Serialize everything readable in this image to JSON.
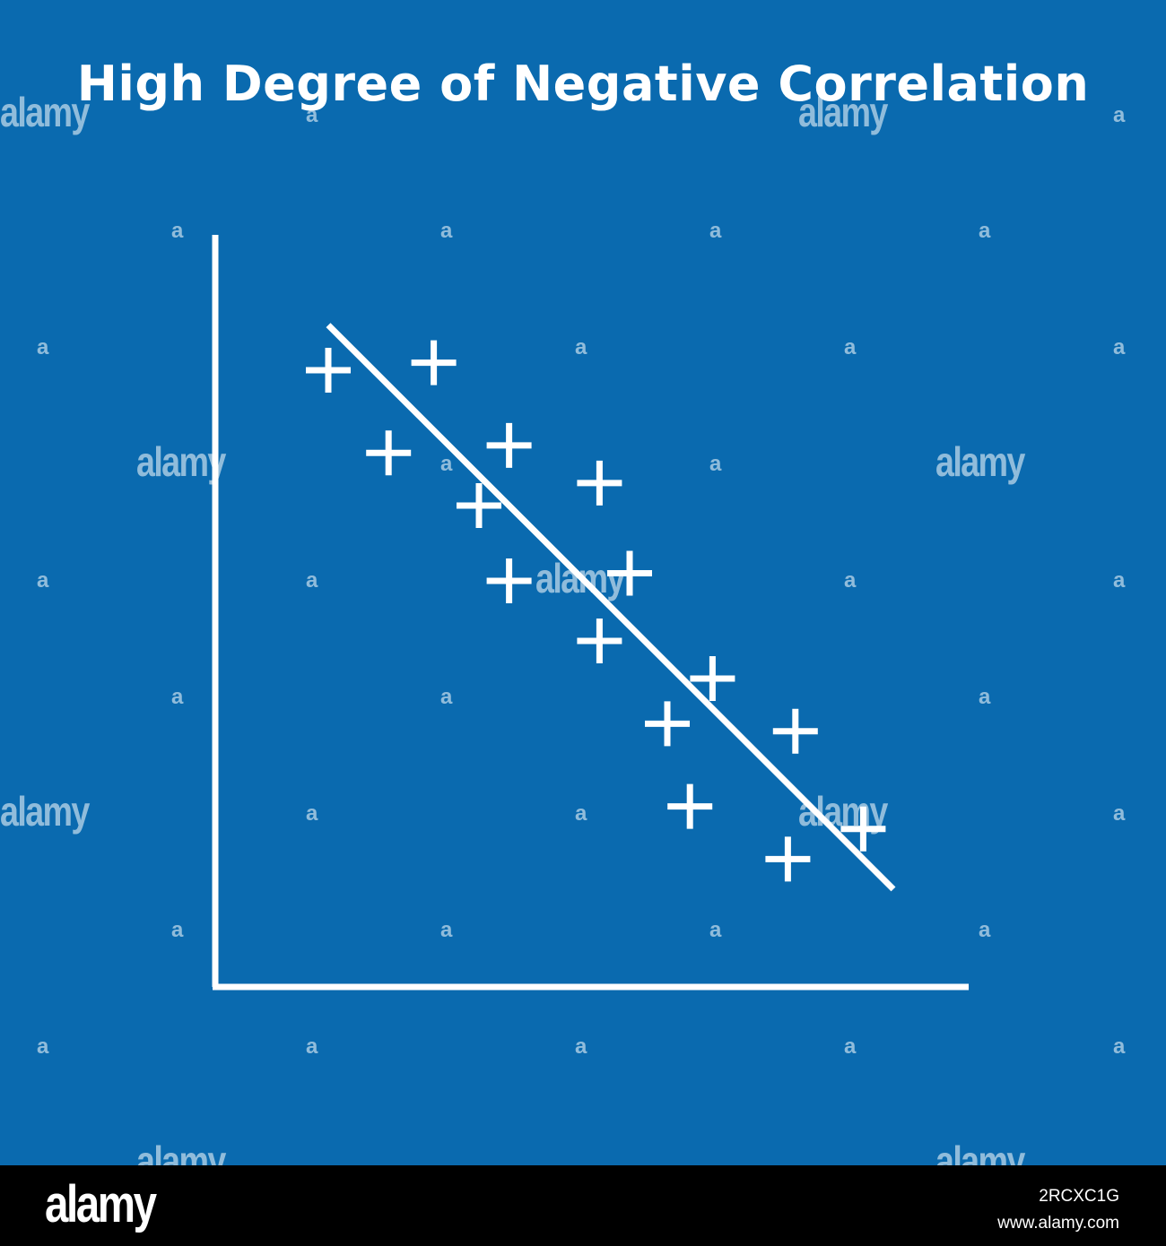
{
  "chart_data": {
    "type": "scatter",
    "title": "High Degree of Negative Correlation",
    "xlabel": "",
    "ylabel": "",
    "xlim": [
      0,
      10
    ],
    "ylim": [
      0,
      10
    ],
    "grid": false,
    "legend": "none",
    "marker": "plus",
    "points": [
      {
        "x": 1.5,
        "y": 8.2
      },
      {
        "x": 2.9,
        "y": 8.3
      },
      {
        "x": 2.3,
        "y": 7.1
      },
      {
        "x": 3.9,
        "y": 7.2
      },
      {
        "x": 3.5,
        "y": 6.4
      },
      {
        "x": 5.1,
        "y": 6.7
      },
      {
        "x": 3.9,
        "y": 5.4
      },
      {
        "x": 5.5,
        "y": 5.5
      },
      {
        "x": 5.1,
        "y": 4.6
      },
      {
        "x": 6.6,
        "y": 4.1
      },
      {
        "x": 6.0,
        "y": 3.5
      },
      {
        "x": 7.7,
        "y": 3.4
      },
      {
        "x": 6.3,
        "y": 2.4
      },
      {
        "x": 8.6,
        "y": 2.1
      },
      {
        "x": 7.6,
        "y": 1.7
      }
    ],
    "trendline": {
      "x": [
        1.5,
        9.0
      ],
      "y": [
        8.8,
        1.3
      ]
    }
  },
  "colors": {
    "background": "#0a6aaf",
    "foreground": "#ffffff",
    "footer": "#000000"
  },
  "watermark": {
    "word": "alamy",
    "letter": "a"
  },
  "footer": {
    "logo": "alamy",
    "image_id": "2RCXC1G",
    "site": "www.alamy.com"
  }
}
